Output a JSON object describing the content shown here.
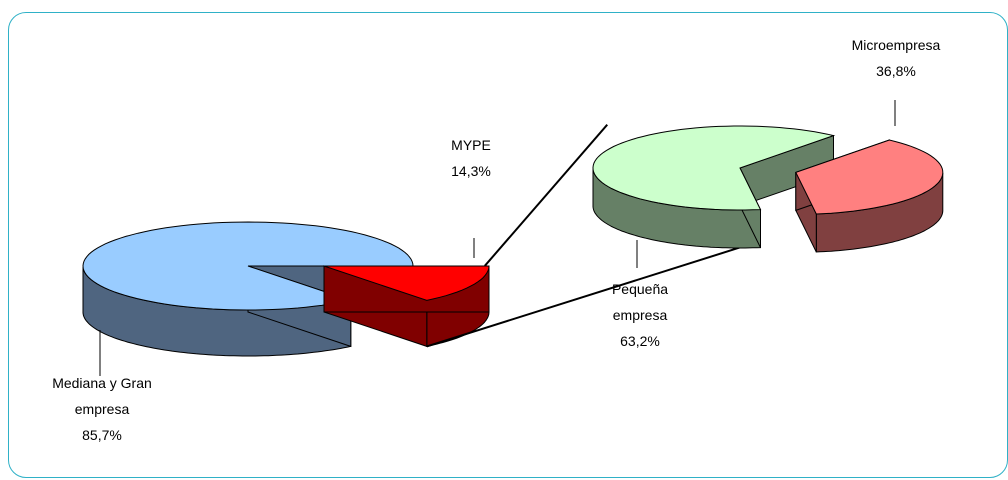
{
  "chart_data": [
    {
      "type": "pie",
      "title": "",
      "slices": [
        {
          "name": "Mediana y Gran empresa",
          "label_lines": [
            "Mediana y Gran",
            "empresa"
          ],
          "value": 85.7,
          "value_label": "85,7%",
          "top_color": "#99ccff",
          "side_color": "#4f6580"
        },
        {
          "name": "MYPE",
          "label_lines": [
            "MYPE"
          ],
          "value": 14.3,
          "value_label": "14,3%",
          "top_color": "#ff0000",
          "side_color": "#800000"
        }
      ],
      "exploded": "MYPE",
      "style": "3d-exploded-pie"
    },
    {
      "type": "pie",
      "title": "",
      "slices": [
        {
          "name": "Microempresa",
          "label_lines": [
            "Microempresa"
          ],
          "value": 36.8,
          "value_label": "36,8%",
          "top_color": "#ff8080",
          "side_color": "#804040"
        },
        {
          "name": "Pequeña empresa",
          "label_lines": [
            "Pequeña",
            "empresa"
          ],
          "value": 63.2,
          "value_label": "63,2%",
          "top_color": "#ccffcc",
          "side_color": "#668066"
        }
      ],
      "exploded": "Microempresa",
      "style": "3d-exploded-pie",
      "breakdown_of": "MYPE"
    }
  ]
}
